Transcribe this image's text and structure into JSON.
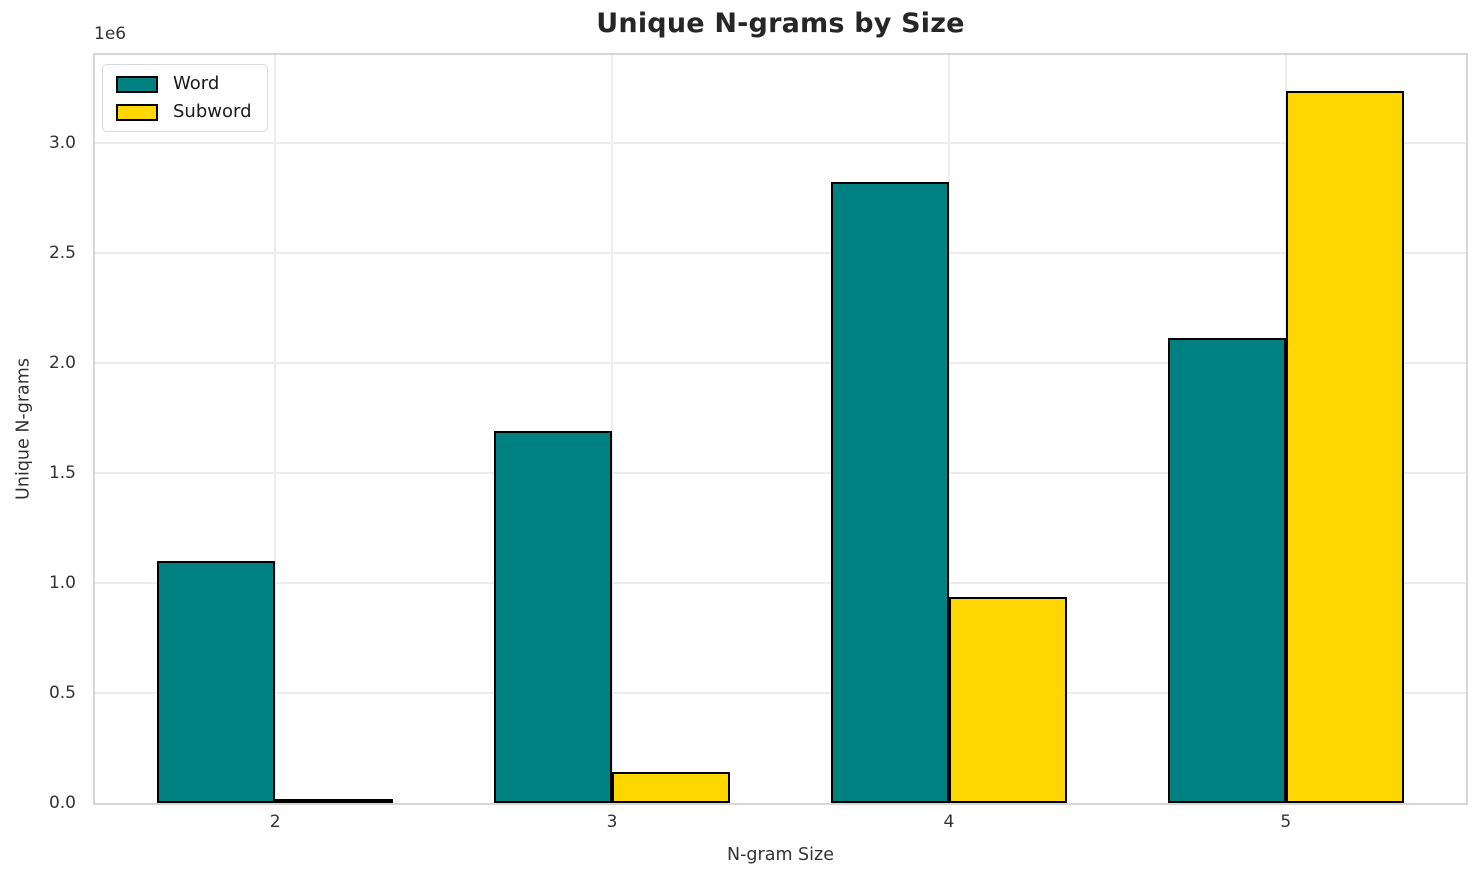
{
  "chart_data": {
    "type": "bar",
    "title": "Unique N-grams by Size",
    "xlabel": "N-gram Size",
    "ylabel": "Unique N-grams",
    "y_offset_text": "1e6",
    "categories": [
      "2",
      "3",
      "4",
      "5"
    ],
    "series": [
      {
        "name": "Word",
        "color": "#008080",
        "values": [
          1100000,
          1690000,
          2825000,
          2115000
        ]
      },
      {
        "name": "Subword",
        "color": "#FFD700",
        "values": [
          12000,
          140000,
          935000,
          3235000
        ]
      }
    ],
    "ylim": [
      0,
      3400000
    ],
    "yticks": [
      0,
      500000,
      1000000,
      1500000,
      2000000,
      2500000,
      3000000
    ],
    "ytick_labels": [
      "0.0",
      "0.5",
      "1.0",
      "1.5",
      "2.0",
      "2.5",
      "3.0"
    ],
    "grid": true,
    "legend_position": "upper left",
    "bar_edge_color": "#000000",
    "colors": {
      "grid": "#ededed",
      "spine": "#d6d6d6",
      "title": "#262626",
      "tick": "#333333"
    }
  }
}
